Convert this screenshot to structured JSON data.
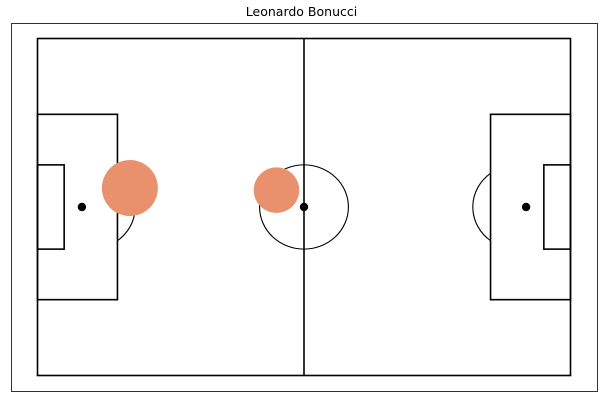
{
  "chart_data": {
    "type": "scatter",
    "title": "Leonardo Bonucci",
    "xlabel": "",
    "ylabel": "",
    "xlim": [
      0,
      120
    ],
    "ylim": [
      0,
      80
    ],
    "grid": false,
    "background": "pitch",
    "colors": {
      "line": "#000000",
      "marker": "#e9906c",
      "frame": "#000000"
    },
    "points": [
      {
        "x": 20.8,
        "y": 35.5,
        "size": 1.0
      },
      {
        "x": 53.8,
        "y": 36.0,
        "size": 0.66
      }
    ]
  }
}
